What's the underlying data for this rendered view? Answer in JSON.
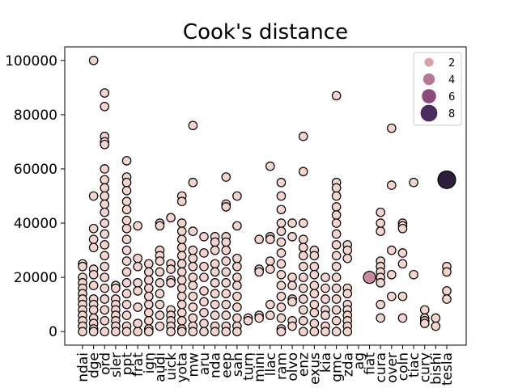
{
  "chart_data": {
    "type": "scatter",
    "title": "Cook's distance",
    "xlabel": "",
    "ylabel": "",
    "ylim": [
      -5000,
      105000
    ],
    "yticks": [
      0,
      20000,
      40000,
      60000,
      80000,
      100000
    ],
    "categories": [
      "ndai",
      "dge",
      "ord",
      "sler",
      "ppt",
      "frat",
      "ign",
      "audi",
      "uick",
      "yota",
      "mw",
      "aru",
      "nda",
      "eep",
      "san",
      "turn",
      "mini",
      "llac",
      "ram",
      "olvo",
      "enz",
      "exus",
      "kia",
      "gmc",
      "zda",
      "ag",
      "fiat",
      "cura",
      "over",
      "coln",
      "tiac",
      "cury",
      "bishi",
      "tesla"
    ],
    "legend": {
      "title": "",
      "placement": "top-right",
      "items": [
        {
          "label": "2",
          "size": 2,
          "color": "#d9a0aa"
        },
        {
          "label": "4",
          "size": 4,
          "color": "#b97597"
        },
        {
          "label": "6",
          "size": 6,
          "color": "#8a4a7c"
        },
        {
          "label": "8",
          "size": 8,
          "color": "#4b2c5c"
        }
      ]
    },
    "base_color": "#f3d5cd",
    "highlight_points": [
      {
        "category": "fiat",
        "y": 20000,
        "size": 4,
        "color": "#c9899f"
      },
      {
        "category": "tesla",
        "y": 56000,
        "size": 8,
        "color": "#2d1e3e"
      }
    ],
    "series": [
      {
        "category": "ndai",
        "y": [
          25000,
          24000,
          20000,
          18000,
          16000,
          14000,
          12000,
          10000,
          8000,
          6000,
          4000,
          2000,
          0
        ]
      },
      {
        "category": "dge",
        "y": [
          100000,
          50000,
          38000,
          34000,
          31000,
          23000,
          21000,
          17000,
          12000,
          10000,
          8000,
          5000,
          3000,
          1000,
          0
        ]
      },
      {
        "category": "ord",
        "y": [
          88000,
          83000,
          72000,
          70000,
          69000,
          60000,
          56000,
          53000,
          50000,
          47000,
          44000,
          40000,
          36000,
          32000,
          28000,
          24000,
          20000,
          16000,
          12000,
          8000,
          4000,
          0
        ]
      },
      {
        "category": "sler",
        "y": [
          17000,
          16000,
          12000,
          10000,
          8000,
          6000,
          4000,
          2000,
          0
        ]
      },
      {
        "category": "ppt",
        "y": [
          63000,
          57000,
          55000,
          52000,
          48000,
          45000,
          41000,
          38000,
          34000,
          30000,
          26000,
          22000,
          18000,
          14000,
          10000,
          6000,
          2000,
          0
        ]
      },
      {
        "category": "frat",
        "y": [
          39000,
          27000,
          24000,
          18000,
          15000,
          9000,
          3000,
          0
        ]
      },
      {
        "category": "ign",
        "y": [
          25000,
          22000,
          19000,
          16000,
          13000,
          10000,
          7000,
          4000,
          1000,
          0
        ]
      },
      {
        "category": "audi",
        "y": [
          40000,
          39000,
          30000,
          28000,
          26000,
          22000,
          18000,
          14000,
          10000,
          6000,
          2000
        ]
      },
      {
        "category": "uick",
        "y": [
          42000,
          25000,
          23000,
          19000,
          18000,
          8000,
          6000,
          4000,
          2000,
          0
        ]
      },
      {
        "category": "yota",
        "y": [
          50000,
          48000,
          40000,
          37000,
          34000,
          31000,
          28000,
          25000,
          22000,
          19000,
          16000,
          13000,
          10000,
          7000,
          4000,
          1000,
          0
        ]
      },
      {
        "category": "mw",
        "y": [
          76000,
          55000,
          37000,
          30000,
          27000,
          24000,
          20000,
          17000,
          13000,
          9000,
          5000,
          2000,
          0
        ]
      },
      {
        "category": "aru",
        "y": [
          35000,
          29000,
          24000,
          20000,
          15000,
          11000,
          7000,
          3000,
          0
        ]
      },
      {
        "category": "nda",
        "y": [
          35000,
          33000,
          30000,
          25000,
          22000,
          18000,
          14000,
          10000,
          6000,
          2000,
          0
        ]
      },
      {
        "category": "eep",
        "y": [
          57000,
          47000,
          46000,
          35000,
          33000,
          30000,
          26000,
          22000,
          18000,
          14000,
          10000,
          6000,
          2000,
          0
        ]
      },
      {
        "category": "san",
        "y": [
          50000,
          39000,
          27000,
          24000,
          20000,
          17000,
          13000,
          9000,
          5000,
          2000,
          0
        ]
      },
      {
        "category": "turn",
        "y": [
          5000,
          4000
        ]
      },
      {
        "category": "mini",
        "y": [
          34000,
          23000,
          22000,
          6000,
          5000
        ]
      },
      {
        "category": "llac",
        "y": [
          61000,
          35000,
          34000,
          26000,
          23000,
          10000,
          6000
        ]
      },
      {
        "category": "ram",
        "y": [
          55000,
          50000,
          45000,
          40000,
          37000,
          33000,
          29000,
          25000,
          21000,
          17000,
          13000,
          9000,
          5000,
          1000,
          0
        ]
      },
      {
        "category": "olvo",
        "y": [
          40000,
          35000,
          20000,
          17000,
          12000,
          11000,
          4000,
          2000
        ]
      },
      {
        "category": "enz",
        "y": [
          72000,
          59000,
          40000,
          34000,
          31000,
          28000,
          24000,
          20000,
          16000,
          12000,
          8000,
          4000,
          0
        ]
      },
      {
        "category": "exus",
        "y": [
          30000,
          28000,
          24000,
          21000,
          17000,
          14000,
          10000,
          7000,
          3000,
          0
        ]
      },
      {
        "category": "kia",
        "y": [
          20000,
          16000,
          12000,
          8000,
          6000,
          2000,
          0
        ]
      },
      {
        "category": "gmc",
        "y": [
          87000,
          55000,
          53000,
          50000,
          46000,
          43000,
          40000,
          36000,
          32000,
          28000,
          24000,
          20000,
          16000,
          12000,
          8000,
          4000,
          0
        ]
      },
      {
        "category": "zda",
        "y": [
          32000,
          30000,
          27000,
          16000,
          14000,
          10000,
          8000,
          6000,
          4000,
          2000,
          0
        ]
      },
      {
        "category": "cura",
        "y": [
          44000,
          40000,
          37000,
          26000,
          24000,
          22000,
          20000,
          18000,
          10000,
          5000
        ]
      },
      {
        "category": "over",
        "y": [
          75000,
          54000,
          30000,
          21000,
          13000
        ]
      },
      {
        "category": "coln",
        "y": [
          40000,
          39000,
          38000,
          29000,
          25000,
          13000,
          5000
        ]
      },
      {
        "category": "tiac",
        "y": [
          55000,
          21000
        ]
      },
      {
        "category": "cury",
        "y": [
          8000,
          5000,
          4000,
          3000
        ]
      },
      {
        "category": "bishi",
        "y": [
          5000,
          2000
        ]
      },
      {
        "category": "tesla",
        "y": [
          24000,
          22000,
          15000,
          12000
        ]
      }
    ]
  }
}
